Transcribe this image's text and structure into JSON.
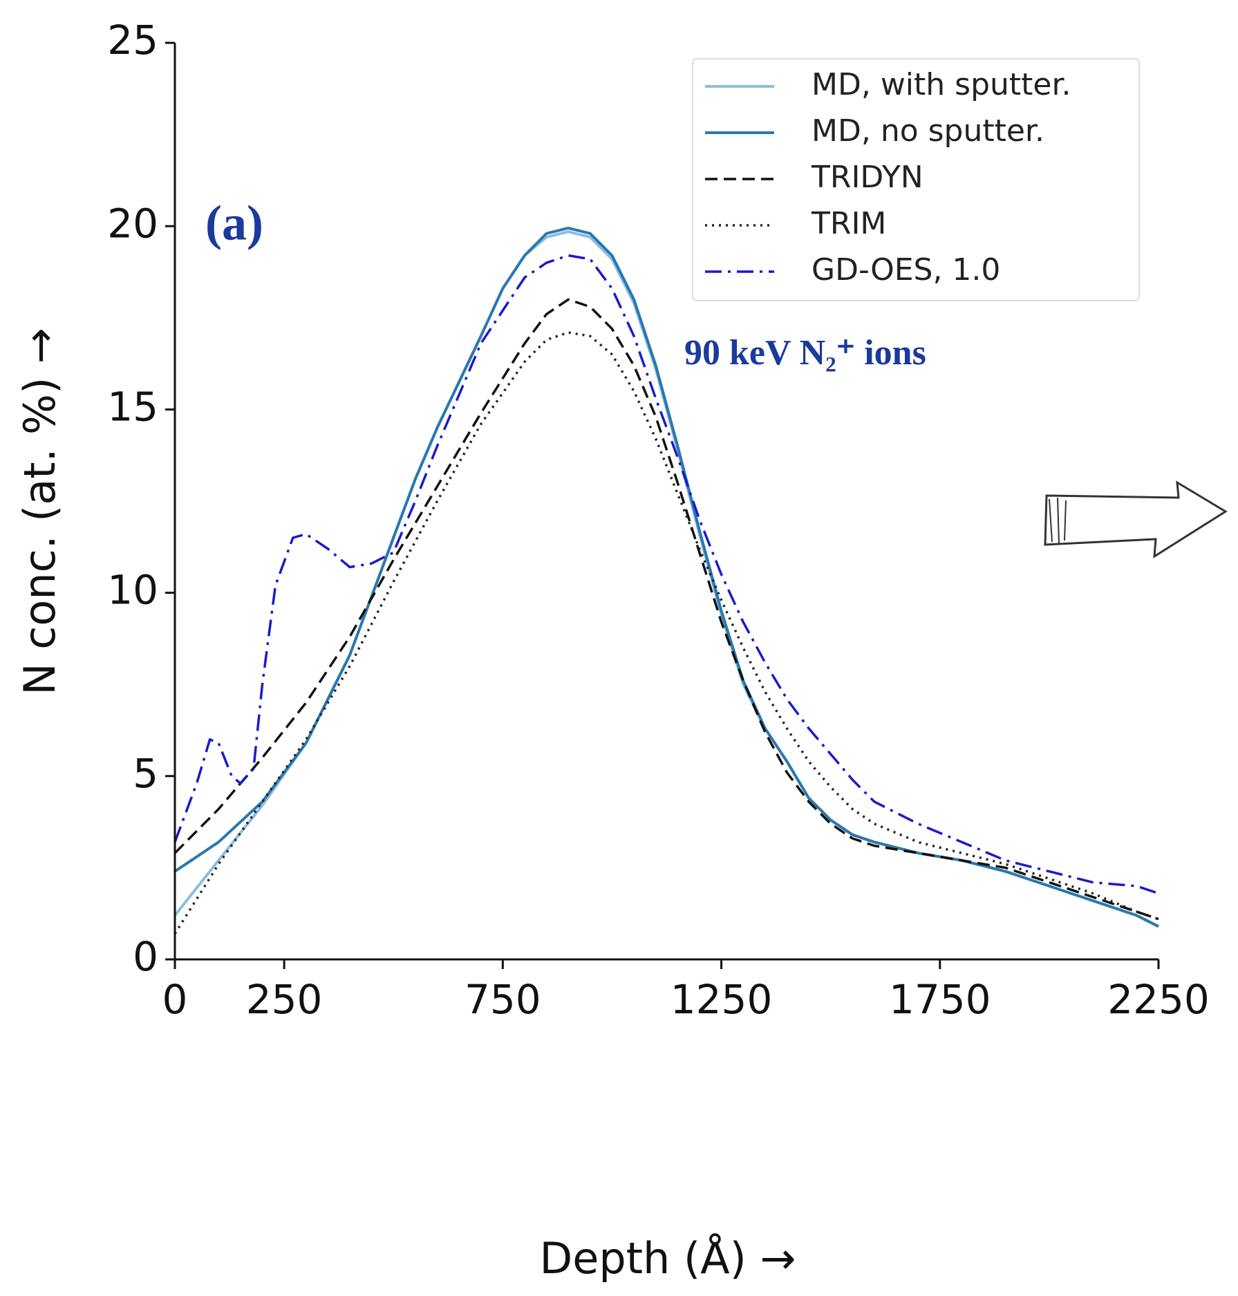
{
  "chart_data": {
    "type": "line",
    "xlabel": "Depth (Å)   →",
    "ylabel": "N conc. (at. %)   →",
    "annotations": [
      "(a)",
      "90 keV N₂⁺ ions"
    ],
    "xlim": [
      0,
      2250
    ],
    "xticks": [
      0,
      250,
      750,
      1250,
      1750,
      2250
    ],
    "ylim": [
      0,
      25
    ],
    "yticks": [
      0,
      5,
      10,
      15,
      20,
      25
    ],
    "legend": "upper right",
    "series": [
      {
        "name": "MD, with sputter.",
        "color": "#8dbde0",
        "linestyle": "solid",
        "x": [
          0,
          100,
          200,
          300,
          400,
          450,
          500,
          550,
          600,
          700,
          750,
          800,
          850,
          900,
          950,
          1000,
          1050,
          1100,
          1150,
          1200,
          1250,
          1300,
          1350,
          1400,
          1450,
          1500,
          1550,
          1600,
          1700,
          1800,
          1900,
          2000,
          2100,
          2200,
          2250
        ],
        "values": [
          1.2,
          2.7,
          4.2,
          5.9,
          8.3,
          9.9,
          11.5,
          13.1,
          14.5,
          17.0,
          18.3,
          19.2,
          19.7,
          19.85,
          19.7,
          19.1,
          17.9,
          16.1,
          13.9,
          11.6,
          9.4,
          7.5,
          6.3,
          5.4,
          4.4,
          3.8,
          3.4,
          3.2,
          2.9,
          2.7,
          2.4,
          2.0,
          1.6,
          1.2,
          0.9
        ]
      },
      {
        "name": "MD, no sputter.",
        "color": "#2878b0",
        "linestyle": "solid",
        "x": [
          0,
          100,
          200,
          300,
          400,
          450,
          500,
          550,
          600,
          700,
          750,
          800,
          850,
          900,
          950,
          1000,
          1050,
          1100,
          1150,
          1200,
          1250,
          1300,
          1350,
          1400,
          1450,
          1500,
          1550,
          1600,
          1700,
          1800,
          1900,
          2000,
          2100,
          2200,
          2250
        ],
        "values": [
          2.4,
          3.2,
          4.3,
          5.9,
          8.3,
          9.9,
          11.5,
          13.1,
          14.5,
          17.0,
          18.3,
          19.2,
          19.8,
          19.95,
          19.8,
          19.2,
          18.0,
          16.2,
          14.0,
          11.7,
          9.5,
          7.6,
          6.3,
          5.4,
          4.4,
          3.8,
          3.4,
          3.2,
          2.9,
          2.7,
          2.4,
          2.0,
          1.6,
          1.2,
          0.9
        ]
      },
      {
        "name": "TRIDYN",
        "color": "#111111",
        "linestyle": "dashed",
        "x": [
          0,
          100,
          200,
          300,
          400,
          500,
          600,
          700,
          800,
          850,
          900,
          950,
          1000,
          1050,
          1100,
          1150,
          1200,
          1250,
          1300,
          1350,
          1400,
          1450,
          1500,
          1550,
          1600,
          1700,
          1800,
          1900,
          2000,
          2100,
          2200,
          2250
        ],
        "values": [
          2.9,
          4.1,
          5.5,
          7.0,
          8.8,
          10.9,
          12.9,
          14.9,
          16.8,
          17.6,
          18.0,
          17.8,
          17.2,
          16.2,
          14.8,
          13.0,
          11.1,
          9.2,
          7.6,
          6.2,
          5.1,
          4.3,
          3.7,
          3.3,
          3.1,
          2.9,
          2.7,
          2.5,
          2.1,
          1.7,
          1.3,
          1.1
        ]
      },
      {
        "name": "TRIM",
        "color": "#222222",
        "linestyle": "dotted",
        "x": [
          0,
          100,
          200,
          300,
          400,
          500,
          600,
          700,
          800,
          850,
          900,
          950,
          1000,
          1050,
          1100,
          1150,
          1200,
          1250,
          1300,
          1350,
          1400,
          1450,
          1500,
          1550,
          1600,
          1700,
          1800,
          1900,
          2000,
          2100,
          2200,
          2250
        ],
        "values": [
          0.7,
          2.6,
          4.3,
          6.0,
          8.0,
          10.3,
          12.5,
          14.6,
          16.3,
          16.9,
          17.1,
          17.0,
          16.5,
          15.5,
          14.2,
          12.7,
          11.2,
          9.8,
          8.5,
          7.3,
          6.3,
          5.4,
          4.7,
          4.1,
          3.7,
          3.2,
          2.9,
          2.6,
          2.2,
          1.8,
          1.3,
          1.1
        ]
      },
      {
        "name": "GD-OES, 1.0",
        "color": "#1a1acc",
        "linestyle": "dashdot",
        "x": [
          0,
          50,
          80,
          100,
          130,
          150,
          180,
          200,
          230,
          270,
          300,
          350,
          400,
          450,
          500,
          550,
          600,
          700,
          800,
          850,
          900,
          950,
          1000,
          1050,
          1100,
          1150,
          1200,
          1250,
          1300,
          1350,
          1400,
          1450,
          1500,
          1550,
          1600,
          1700,
          1800,
          1900,
          2000,
          2100,
          2200,
          2250
        ],
        "values": [
          3.2,
          4.8,
          6.0,
          5.9,
          5.0,
          4.8,
          5.2,
          7.5,
          10.2,
          11.5,
          11.6,
          11.2,
          10.7,
          10.8,
          11.1,
          12.5,
          14.0,
          16.8,
          18.6,
          19.0,
          19.2,
          19.1,
          18.3,
          17.0,
          15.3,
          13.7,
          12.0,
          10.5,
          9.2,
          8.1,
          7.1,
          6.3,
          5.6,
          4.9,
          4.3,
          3.7,
          3.2,
          2.7,
          2.4,
          2.1,
          2.0,
          1.8
        ]
      }
    ]
  }
}
